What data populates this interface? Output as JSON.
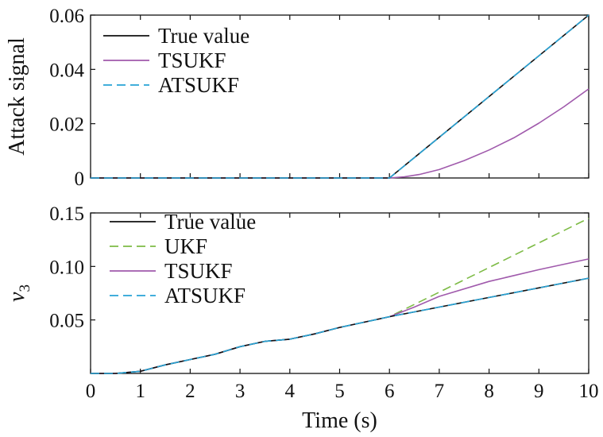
{
  "chart_data": [
    {
      "type": "line",
      "ylabel": "Attack signal",
      "xlim": [
        0,
        10
      ],
      "ylim": [
        0,
        0.06
      ],
      "yticks": [
        0,
        0.02,
        0.04,
        0.06
      ],
      "ytick_labels": [
        "0",
        "0.02",
        "0.04",
        "0.06"
      ],
      "xticks": [
        0,
        1,
        2,
        3,
        4,
        5,
        6,
        7,
        8,
        9,
        10
      ],
      "xtick_labels": [],
      "legend_position": "top-left",
      "series": [
        {
          "name": "True value",
          "color": "#111111",
          "dash": "solid",
          "x": [
            0,
            6,
            10
          ],
          "y": [
            0,
            0,
            0.06
          ]
        },
        {
          "name": "TSUKF",
          "color": "#a05aac",
          "dash": "solid",
          "x": [
            0,
            6.0,
            6.3,
            6.6,
            7.0,
            7.5,
            8.0,
            8.5,
            9.0,
            9.5,
            10.0
          ],
          "y": [
            0,
            0,
            0.0004,
            0.0013,
            0.0031,
            0.0064,
            0.0103,
            0.0148,
            0.0202,
            0.0262,
            0.0328
          ]
        },
        {
          "name": "ATSUKF",
          "color": "#27a3d6",
          "dash": "dashed",
          "x": [
            0,
            6,
            10
          ],
          "y": [
            0,
            0,
            0.06
          ]
        }
      ]
    },
    {
      "type": "line",
      "ylabel": "v3",
      "xlabel": "Time (s)",
      "xlim": [
        0,
        10
      ],
      "ylim": [
        0,
        0.15
      ],
      "yticks": [
        0.05,
        0.1,
        0.15
      ],
      "ytick_labels": [
        "0.05",
        "0.10",
        "0.15"
      ],
      "xticks": [
        0,
        1,
        2,
        3,
        4,
        5,
        6,
        7,
        8,
        9,
        10
      ],
      "xtick_labels": [
        "0",
        "1",
        "2",
        "3",
        "4",
        "5",
        "6",
        "7",
        "8",
        "9",
        "10"
      ],
      "legend_position": "top-left",
      "series": [
        {
          "name": "True value",
          "color": "#111111",
          "dash": "solid",
          "x": [
            0,
            0.5,
            1.0,
            1.5,
            2.0,
            2.5,
            3.0,
            3.5,
            4.0,
            4.5,
            5.0,
            5.5,
            6.0,
            7.0,
            8.0,
            9.0,
            10.0
          ],
          "y": [
            0.0,
            0.0,
            0.002,
            0.008,
            0.013,
            0.018,
            0.025,
            0.03,
            0.032,
            0.037,
            0.043,
            0.048,
            0.053,
            0.062,
            0.071,
            0.08,
            0.089
          ]
        },
        {
          "name": "UKF",
          "color": "#7dbb45",
          "dash": "dashed",
          "x": [
            0,
            0.5,
            1.0,
            1.5,
            2.0,
            2.5,
            3.0,
            3.5,
            4.0,
            4.5,
            5.0,
            5.5,
            6.0,
            7.0,
            8.0,
            9.0,
            10.0
          ],
          "y": [
            0.0,
            0.0,
            0.002,
            0.008,
            0.013,
            0.018,
            0.025,
            0.03,
            0.032,
            0.037,
            0.043,
            0.048,
            0.053,
            0.076,
            0.099,
            0.122,
            0.145
          ]
        },
        {
          "name": "TSUKF",
          "color": "#a05aac",
          "dash": "solid",
          "x": [
            0,
            0.5,
            1.0,
            1.5,
            2.0,
            2.5,
            3.0,
            3.5,
            4.0,
            4.5,
            5.0,
            5.5,
            6.0,
            6.5,
            7.0,
            8.0,
            9.0,
            10.0
          ],
          "y": [
            0.0,
            0.0,
            0.002,
            0.008,
            0.013,
            0.018,
            0.025,
            0.03,
            0.032,
            0.037,
            0.043,
            0.048,
            0.053,
            0.062,
            0.072,
            0.086,
            0.097,
            0.107
          ]
        },
        {
          "name": "ATSUKF",
          "color": "#27a3d6",
          "dash": "dashed",
          "x": [
            0,
            0.5,
            1.0,
            1.5,
            2.0,
            2.5,
            3.0,
            3.5,
            4.0,
            4.5,
            5.0,
            5.5,
            6.0,
            7.0,
            8.0,
            9.0,
            10.0
          ],
          "y": [
            0.0,
            0.0,
            0.002,
            0.008,
            0.013,
            0.018,
            0.025,
            0.03,
            0.032,
            0.037,
            0.043,
            0.048,
            0.053,
            0.062,
            0.071,
            0.08,
            0.089
          ]
        }
      ]
    }
  ]
}
